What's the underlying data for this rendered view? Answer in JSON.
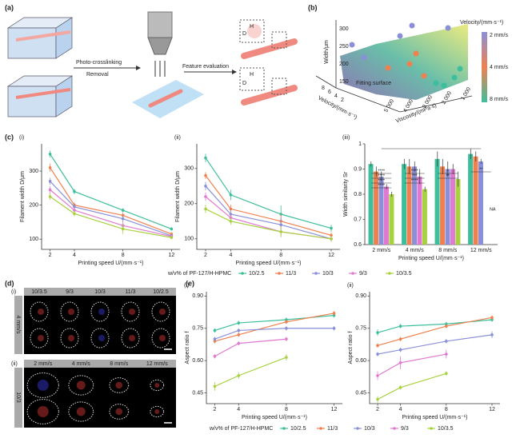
{
  "labels": {
    "a": "(a)",
    "b": "(b)",
    "c": "(c)",
    "d": "(d)",
    "e": "(e)"
  },
  "panel_a": {
    "step1": "Photo-crosslinking",
    "step2": "Removal",
    "step3": "Feature evaluation",
    "h": "H",
    "d": "D"
  },
  "panel_b": {
    "z_axis": "Width/μm",
    "z_ticks": [
      150,
      200,
      250,
      300
    ],
    "x_axis": "Velocity/(mm·s⁻¹)",
    "x_ticks": [
      8,
      6,
      4,
      2
    ],
    "y_axis": "Viscosity/(mPa·s)",
    "y_ticks": [
      "5 000",
      "4 000",
      "3 000",
      "2 000",
      "1 000"
    ],
    "surface": "Fitting surface",
    "colorbar_title": "Velocity/(mm·s⁻¹)",
    "colorbar_labels": [
      "2 mm/s",
      "4 mm/s",
      "8 mm/s"
    ]
  },
  "panel_d": {
    "sub_i": "(i)",
    "sub_ii": "(ii)",
    "cols_i": [
      "10/3.5",
      "9/3",
      "10/3",
      "11/3",
      "10/2.5"
    ],
    "row_i": "4 mm/s",
    "cols_ii": [
      "2 mm/s",
      "4 mm/s",
      "8 mm/s",
      "12 mm/s"
    ],
    "row_ii": "10/3"
  },
  "legend_title": "w/v% of PF-127/H-HPMC",
  "chart_data": [
    {
      "type": "line",
      "subtitle": "(i)",
      "x_label": "Printing speed U/(mm·s⁻¹)",
      "y_label": "Filament width D/μm",
      "x": [
        2,
        4,
        8,
        12
      ],
      "xlim": [
        1.3,
        12.7
      ],
      "xticks": [
        2,
        4,
        8,
        12
      ],
      "ylim": [
        70,
        380
      ],
      "yticks": [
        100,
        200,
        300
      ],
      "series": [
        {
          "name": "10/2.5",
          "color": "#3dbf9c",
          "values": [
            350,
            240,
            185,
            130
          ],
          "errors": [
            10,
            8,
            6,
            5
          ]
        },
        {
          "name": "11/3",
          "color": "#f0804f",
          "values": [
            310,
            200,
            170,
            115
          ],
          "errors": [
            12,
            8,
            8,
            5
          ]
        },
        {
          "name": "10/3",
          "color": "#8a90d8",
          "values": [
            270,
            195,
            160,
            110
          ],
          "errors": [
            10,
            8,
            10,
            5
          ]
        },
        {
          "name": "9/3",
          "color": "#e07ad0",
          "values": [
            245,
            185,
            140,
            108
          ],
          "errors": [
            10,
            8,
            12,
            5
          ]
        },
        {
          "name": "10/3.5",
          "color": "#a8d140",
          "values": [
            225,
            175,
            130,
            105
          ],
          "errors": [
            10,
            8,
            15,
            5
          ]
        }
      ]
    },
    {
      "type": "line",
      "subtitle": "(ii)",
      "x_label": "Printing speed U/(mm·s⁻¹)",
      "y_label": "Filament width D/μm",
      "x": [
        2,
        4,
        8,
        12
      ],
      "xlim": [
        1.3,
        12.7
      ],
      "xticks": [
        2,
        4,
        8,
        12
      ],
      "ylim": [
        70,
        370
      ],
      "yticks": [
        100,
        200,
        300
      ],
      "series": [
        {
          "name": "10/2.5",
          "color": "#3dbf9c",
          "values": [
            330,
            225,
            170,
            130
          ],
          "errors": [
            12,
            15,
            25,
            10
          ]
        },
        {
          "name": "11/3",
          "color": "#f0804f",
          "values": [
            280,
            185,
            150,
            110
          ],
          "errors": [
            10,
            12,
            20,
            8
          ]
        },
        {
          "name": "10/3",
          "color": "#8a90d8",
          "values": [
            250,
            170,
            140,
            100
          ],
          "errors": [
            12,
            12,
            20,
            8
          ]
        },
        {
          "name": "9/3",
          "color": "#e07ad0",
          "values": [
            220,
            160,
            120,
            100
          ],
          "errors": [
            12,
            10,
            15,
            8
          ]
        },
        {
          "name": "10/3.5",
          "color": "#a8d140",
          "values": [
            185,
            150,
            120,
            100
          ],
          "errors": [
            12,
            10,
            15,
            8
          ]
        }
      ]
    },
    {
      "type": "bar",
      "subtitle": "(iii)",
      "x_label": "Printing speed U/(mm·s⁻¹)",
      "y_label": "Width similarity Sr",
      "categories": [
        "2 mm/s",
        "4 mm/s",
        "8 mm/s",
        "12 mm/s"
      ],
      "ylim": [
        0.6,
        1.0
      ],
      "yticks": [
        0.6,
        0.7,
        0.8,
        0.9,
        1.0
      ],
      "series": [
        {
          "name": "10/2.5",
          "color": "#3dbf9c",
          "values": [
            0.92,
            0.92,
            0.94,
            0.96
          ],
          "errors": [
            0.01,
            0.02,
            0.03,
            0.02
          ]
        },
        {
          "name": "11/3",
          "color": "#f0804f",
          "values": [
            0.89,
            0.91,
            0.91,
            0.95
          ],
          "errors": [
            0.02,
            0.03,
            0.03,
            0.02
          ]
        },
        {
          "name": "10/3",
          "color": "#8a90d8",
          "values": [
            0.87,
            0.91,
            0.9,
            0.93
          ],
          "errors": [
            0.02,
            0.02,
            0.03,
            0.01
          ]
        },
        {
          "name": "9/3",
          "color": "#e07ad0",
          "values": [
            0.83,
            0.87,
            0.9,
            null
          ],
          "errors": [
            0.01,
            0.03,
            0.02,
            null
          ]
        },
        {
          "name": "10/3.5",
          "color": "#a8d140",
          "values": [
            0.8,
            0.82,
            0.86,
            null
          ],
          "errors": [
            0.01,
            0.01,
            0.03,
            null
          ]
        }
      ],
      "annotations": [
        "****",
        "****",
        "****",
        "****",
        "****",
        "***",
        "****",
        "**",
        "*",
        "**",
        "NA"
      ]
    },
    {
      "type": "line",
      "subtitle": "(i)",
      "x_label": "Printing speed U/(mm·s⁻¹)",
      "y_label": "Aspect ratio f",
      "x": [
        2,
        4,
        8,
        12
      ],
      "xlim": [
        1.3,
        12.7
      ],
      "xticks": [
        2,
        4,
        8,
        12
      ],
      "ylim": [
        0.4,
        0.92
      ],
      "yticks": [
        0.45,
        {
          "value": 0.6,
          "label": "0.60"
        },
        0.75,
        {
          "value": 0.9,
          "label": "0.90"
        }
      ],
      "series": [
        {
          "name": "10/2.5",
          "color": "#3dbf9c",
          "values": [
            0.74,
            0.775,
            0.79,
            0.81
          ],
          "errors": [
            0.01,
            0.01,
            0.01,
            0.01
          ]
        },
        {
          "name": "11/3",
          "color": "#f0804f",
          "values": [
            0.69,
            0.72,
            0.78,
            0.82
          ],
          "errors": [
            0.01,
            0.01,
            0.01,
            0.01
          ]
        },
        {
          "name": "10/3",
          "color": "#8a90d8",
          "values": [
            0.7,
            0.74,
            0.75,
            0.75
          ],
          "errors": [
            0.01,
            0.01,
            0.01,
            0.01
          ]
        },
        {
          "name": "9/3",
          "color": "#e07ad0",
          "values": [
            0.62,
            0.68,
            0.7,
            null
          ],
          "errors": [
            0.01,
            0.01,
            0.01,
            null
          ]
        },
        {
          "name": "10/3.5",
          "color": "#a8d140",
          "values": [
            0.48,
            0.53,
            0.615,
            null
          ],
          "errors": [
            0.02,
            0.015,
            0.015,
            null
          ]
        }
      ]
    },
    {
      "type": "line",
      "subtitle": "(ii)",
      "x_label": "Printing speed U/(mm·s⁻¹)",
      "y_label": "Aspect ratio f",
      "x": [
        2,
        4,
        8,
        12
      ],
      "xlim": [
        1.3,
        12.7
      ],
      "xticks": [
        2,
        4,
        8,
        12
      ],
      "ylim": [
        0.4,
        0.92
      ],
      "yticks": [
        0.45,
        {
          "value": 0.6,
          "label": "0.60"
        },
        0.75,
        {
          "value": 0.9,
          "label": "0.90"
        }
      ],
      "series": [
        {
          "name": "10/2.5",
          "color": "#3dbf9c",
          "values": [
            0.73,
            0.76,
            0.77,
            0.79
          ],
          "errors": [
            0.015,
            0.01,
            0.01,
            0.01
          ]
        },
        {
          "name": "11/3",
          "color": "#f0804f",
          "values": [
            0.67,
            0.7,
            0.76,
            0.8
          ],
          "errors": [
            0.01,
            0.01,
            0.01,
            0.01
          ]
        },
        {
          "name": "10/3",
          "color": "#8a90d8",
          "values": [
            0.63,
            0.65,
            0.69,
            0.72
          ],
          "errors": [
            0.01,
            0.01,
            0.01,
            0.015
          ]
        },
        {
          "name": "9/3",
          "color": "#e07ad0",
          "values": [
            0.53,
            0.59,
            0.63,
            null
          ],
          "errors": [
            0.02,
            0.03,
            0.02,
            null
          ]
        },
        {
          "name": "10/3.5",
          "color": "#a8d140",
          "values": [
            0.42,
            0.475,
            0.54,
            null
          ],
          "errors": [
            0.015,
            0.01,
            0.01,
            null
          ]
        }
      ]
    }
  ]
}
